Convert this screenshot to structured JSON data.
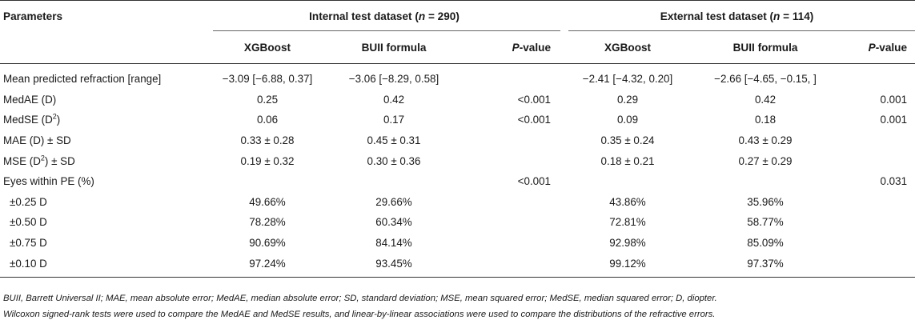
{
  "header": {
    "parameters": "Parameters",
    "internal_group": {
      "prefix": "Internal test dataset (",
      "n": "n",
      "suffix": " = 290)"
    },
    "external_group": {
      "prefix": "External test dataset (",
      "n": "n",
      "suffix": " = 114)"
    },
    "xgboost": "XGBoost",
    "buii": "BUII formula",
    "p_italic": "P",
    "p_rest": "-value"
  },
  "rows": [
    {
      "param": "Mean predicted refraction [range]",
      "int_xgb": "−3.09 [−6.88, 0.37]",
      "int_buii": "−3.06 [−8.29, 0.58]",
      "int_p": "",
      "ext_xgb": "−2.41 [−4.32, 0.20]",
      "ext_buii": "−2.66 [−4.65, −0.15, ]",
      "ext_p": ""
    },
    {
      "param": "MedAE (D)",
      "int_xgb": "0.25",
      "int_buii": "0.42",
      "int_p": "<0.001",
      "ext_xgb": "0.29",
      "ext_buii": "0.42",
      "ext_p": "0.001"
    },
    {
      "param_pre": "MedSE (D",
      "param_sup": "2",
      "param_post": ")",
      "int_xgb": "0.06",
      "int_buii": "0.17",
      "int_p": "<0.001",
      "ext_xgb": "0.09",
      "ext_buii": "0.18",
      "ext_p": "0.001"
    },
    {
      "param": "MAE (D) ± SD",
      "int_xgb": "0.33 ± 0.28",
      "int_buii": "0.45 ± 0.31",
      "int_p": "",
      "ext_xgb": "0.35 ± 0.24",
      "ext_buii": "0.43 ± 0.29",
      "ext_p": ""
    },
    {
      "param_pre": "MSE (D",
      "param_sup": "2",
      "param_post": ") ± SD",
      "int_xgb": "0.19 ± 0.32",
      "int_buii": "0.30 ± 0.36",
      "int_p": "",
      "ext_xgb": "0.18 ± 0.21",
      "ext_buii": "0.27 ± 0.29",
      "ext_p": ""
    },
    {
      "param": "Eyes within PE (%)",
      "int_xgb": "",
      "int_buii": "",
      "int_p": "<0.001",
      "ext_xgb": "",
      "ext_buii": "",
      "ext_p": "0.031"
    },
    {
      "param": "±0.25 D",
      "int_xgb": "49.66%",
      "int_buii": "29.66%",
      "int_p": "",
      "ext_xgb": "43.86%",
      "ext_buii": "35.96%",
      "ext_p": ""
    },
    {
      "param": "±0.50 D",
      "int_xgb": "78.28%",
      "int_buii": "60.34%",
      "int_p": "",
      "ext_xgb": "72.81%",
      "ext_buii": "58.77%",
      "ext_p": ""
    },
    {
      "param": "±0.75 D",
      "int_xgb": "90.69%",
      "int_buii": "84.14%",
      "int_p": "",
      "ext_xgb": "92.98%",
      "ext_buii": "85.09%",
      "ext_p": ""
    },
    {
      "param": "±0.10 D",
      "int_xgb": "97.24%",
      "int_buii": "93.45%",
      "int_p": "",
      "ext_xgb": "99.12%",
      "ext_buii": "97.37%",
      "ext_p": ""
    }
  ],
  "footnote": {
    "line1": "BUII, Barrett Universal II; MAE, mean absolute error; MedAE, median absolute error; SD, standard deviation; MSE, mean squared error; MedSE, median squared error; D, diopter.",
    "line2": "Wilcoxon signed-rank tests were used to compare the MedAE and MedSE results, and linear-by-linear associations were used to compare the distributions of the refractive errors."
  }
}
